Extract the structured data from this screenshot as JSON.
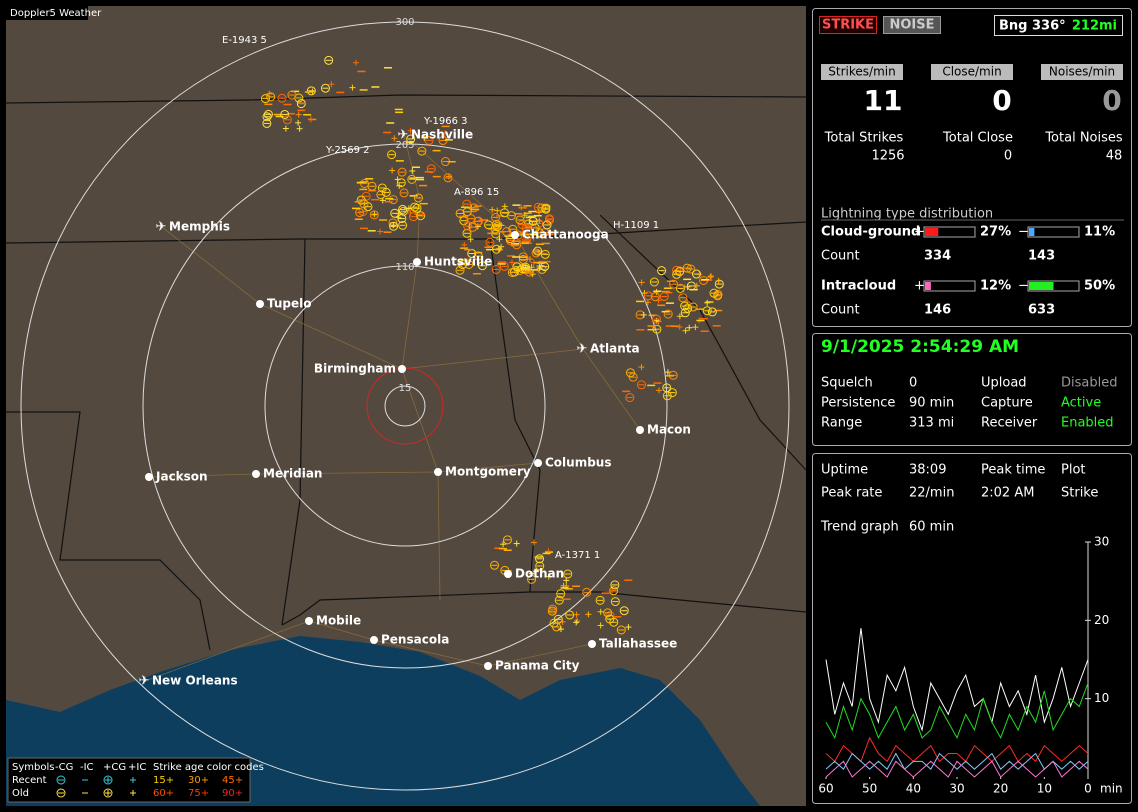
{
  "app_title": "Doppler5 Weather",
  "map": {
    "range_rings": [
      "300",
      "205",
      "110",
      "15"
    ],
    "cities": [
      "Nashville",
      "Memphis",
      "Chattanooga",
      "Huntsville",
      "Tupelo",
      "Atlanta",
      "Birmingham",
      "Macon",
      "Columbus",
      "Montgomery",
      "Meridian",
      "Jackson",
      "Dothan",
      "Mobile",
      "Pensacola",
      "Tallahassee",
      "Panama City",
      "New Orleans"
    ],
    "storms": [
      "E-1943 5",
      "Y-1966 3",
      "Y-2569 2",
      "A-896 15",
      "H-1109 1",
      "A-1371 1"
    ]
  },
  "legend": {
    "header": [
      "Symbols",
      "-CG",
      "-IC",
      "+CG",
      "+IC",
      "Strike age color codes"
    ],
    "recent_label": "Recent",
    "recent_ages": [
      "15+",
      "30+",
      "45+"
    ],
    "old_label": "Old",
    "old_ages": [
      "60+",
      "75+",
      "90+"
    ]
  },
  "status": {
    "strike": "STRIKE",
    "noise": "NOISE",
    "bearing": "Bng 336°",
    "distance": "212mi"
  },
  "rates": {
    "headers": [
      "Strikes/min",
      "Close/min",
      "Noises/min"
    ],
    "values": [
      11,
      0,
      0
    ],
    "total_labels": [
      "Total Strikes",
      "Total Close",
      "Total Noises"
    ],
    "totals": [
      1256,
      0,
      48
    ]
  },
  "distribution": {
    "title": "Lightning type distribution",
    "rows": [
      {
        "label": "Cloud-ground",
        "signs": [
          "+",
          "−"
        ],
        "values": [
          27,
          11
        ],
        "value_labels": [
          "27%",
          "11%"
        ],
        "count_label": "Count",
        "counts": [
          334,
          143
        ]
      },
      {
        "label": "Intracloud",
        "signs": [
          "+",
          "−"
        ],
        "values": [
          12,
          50
        ],
        "value_labels": [
          "12%",
          "50%"
        ],
        "count_label": "Count",
        "counts": [
          146,
          633
        ]
      }
    ]
  },
  "settings": {
    "timestamp": "9/1/2025 2:54:29 AM",
    "rows": [
      [
        "Squelch",
        "0",
        "Upload",
        "Disabled"
      ],
      [
        "Persistence",
        "90 min",
        "Capture",
        "Active"
      ],
      [
        "Range",
        "313 mi",
        "Receiver",
        "Enabled"
      ]
    ]
  },
  "uptime": {
    "rows": [
      [
        "Uptime",
        "38:09",
        "Peak time",
        "Plot"
      ],
      [
        "Peak rate",
        "22/min",
        "2:02 AM",
        "Strike"
      ]
    ],
    "trend_label": "Trend graph",
    "trend_span": "60 min"
  },
  "chart_data": {
    "type": "line",
    "xlabel": "min",
    "x": [
      60,
      58,
      56,
      54,
      52,
      50,
      48,
      46,
      44,
      42,
      40,
      38,
      36,
      34,
      32,
      30,
      28,
      26,
      24,
      22,
      20,
      18,
      16,
      14,
      12,
      10,
      8,
      6,
      4,
      2,
      0
    ],
    "xlim": [
      60,
      0
    ],
    "xticks": [
      60,
      50,
      40,
      30,
      20,
      10,
      0
    ],
    "ylim": [
      0,
      30
    ],
    "yticks": [
      10,
      20,
      30
    ],
    "series": [
      {
        "color": "#ffffff",
        "values": [
          15,
          8,
          12,
          9,
          19,
          10,
          7,
          13,
          11,
          14,
          9,
          6,
          12,
          10,
          8,
          11,
          13,
          9,
          10,
          7,
          12,
          9,
          11,
          8,
          13,
          7,
          10,
          14,
          9,
          12,
          15
        ]
      },
      {
        "color": "#22dd22",
        "values": [
          7,
          5,
          9,
          6,
          10,
          8,
          5,
          7,
          9,
          6,
          8,
          5,
          6,
          9,
          7,
          5,
          8,
          6,
          10,
          7,
          5,
          8,
          6,
          9,
          7,
          11,
          6,
          8,
          10,
          9,
          12
        ]
      },
      {
        "color": "#ff2a2a",
        "values": [
          3,
          2,
          4,
          3,
          2,
          5,
          3,
          2,
          4,
          3,
          2,
          3,
          4,
          2,
          3,
          3,
          2,
          4,
          3,
          2,
          3,
          4,
          2,
          3,
          2,
          4,
          3,
          2,
          3,
          4,
          3
        ]
      },
      {
        "color": "#7fc8ff",
        "values": [
          1,
          2,
          1,
          3,
          2,
          1,
          2,
          1,
          3,
          1,
          2,
          2,
          1,
          3,
          2,
          1,
          2,
          1,
          2,
          3,
          1,
          2,
          1,
          2,
          3,
          1,
          2,
          1,
          2,
          1,
          2
        ]
      },
      {
        "color": "#ff77cc",
        "values": [
          0,
          1,
          2,
          0,
          1,
          2,
          1,
          0,
          2,
          1,
          0,
          1,
          2,
          1,
          0,
          2,
          1,
          0,
          1,
          2,
          0,
          1,
          2,
          1,
          0,
          1,
          2,
          0,
          1,
          2,
          1
        ]
      }
    ]
  }
}
